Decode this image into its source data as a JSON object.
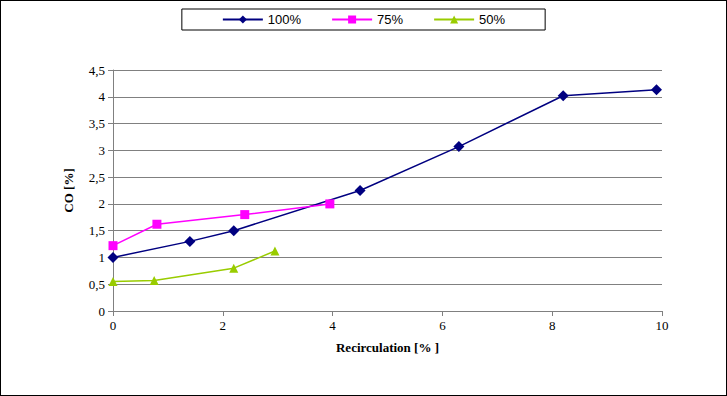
{
  "chart_data": {
    "type": "line",
    "xlabel": "Recirculation [% ]",
    "ylabel": "CO [%]",
    "xlim": [
      0,
      10
    ],
    "xticks": [
      0,
      2,
      4,
      6,
      8,
      10
    ],
    "ylim": [
      0,
      4.5
    ],
    "yticks": [
      0,
      {
        "value": 0.5,
        "label": "0,5"
      },
      1,
      {
        "value": 1.5,
        "label": "1,5"
      },
      2,
      {
        "value": 2.5,
        "label": "2,5"
      },
      3,
      {
        "value": 3.5,
        "label": "3,5"
      },
      4,
      {
        "value": 4.5,
        "label": "4,5"
      }
    ],
    "grid": true,
    "legend": "top",
    "series": [
      {
        "name": "100%",
        "color": "#000080",
        "marker": "diamond",
        "x": [
          0,
          1.4,
          2.2,
          4.5,
          6.3,
          8.2,
          9.9
        ],
        "values": [
          1.0,
          1.3,
          1.5,
          2.25,
          3.07,
          4.02,
          4.13
        ]
      },
      {
        "name": "75%",
        "color": "#ff00ff",
        "marker": "square",
        "x": [
          0,
          0.8,
          2.4,
          3.95
        ],
        "values": [
          1.22,
          1.62,
          1.8,
          2.0
        ]
      },
      {
        "name": "50%",
        "color": "#99cc00",
        "marker": "triangle",
        "x": [
          0,
          0.75,
          2.2,
          2.95
        ],
        "values": [
          0.55,
          0.57,
          0.8,
          1.12
        ]
      }
    ]
  }
}
